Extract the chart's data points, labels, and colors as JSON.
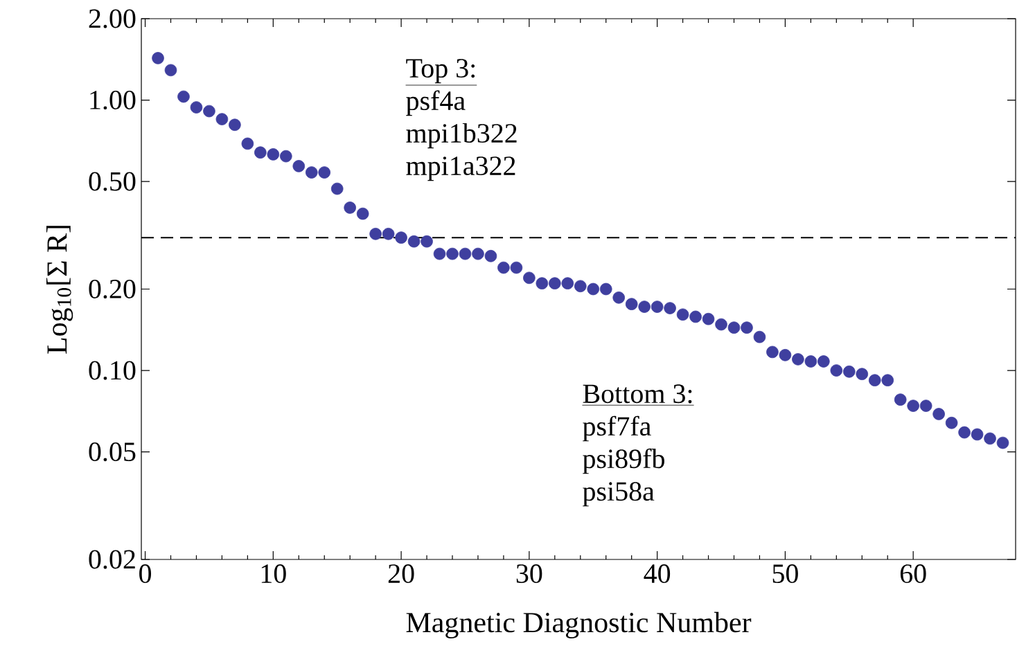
{
  "chart_data": {
    "type": "scatter",
    "xlabel": "Magnetic Diagnostic Number",
    "ylabel": "Log$_{10}$[Σ R]",
    "x": [
      1,
      2,
      3,
      4,
      5,
      6,
      7,
      8,
      9,
      10,
      11,
      12,
      13,
      14,
      15,
      16,
      17,
      18,
      19,
      20,
      21,
      22,
      23,
      24,
      25,
      26,
      27,
      28,
      29,
      30,
      31,
      32,
      33,
      34,
      35,
      36,
      37,
      38,
      39,
      40,
      41,
      42,
      43,
      44,
      45,
      46,
      47,
      48,
      49,
      50,
      51,
      52,
      53,
      54,
      55,
      56,
      57,
      58,
      59,
      60,
      61,
      62,
      63,
      64,
      65,
      66,
      67
    ],
    "values": [
      1.43,
      1.29,
      1.03,
      0.94,
      0.91,
      0.85,
      0.81,
      0.69,
      0.64,
      0.63,
      0.62,
      0.57,
      0.54,
      0.54,
      0.47,
      0.4,
      0.38,
      0.32,
      0.32,
      0.31,
      0.3,
      0.3,
      0.27,
      0.27,
      0.27,
      0.27,
      0.265,
      0.24,
      0.24,
      0.22,
      0.21,
      0.21,
      0.21,
      0.205,
      0.2,
      0.2,
      0.186,
      0.176,
      0.172,
      0.172,
      0.17,
      0.161,
      0.158,
      0.155,
      0.148,
      0.144,
      0.144,
      0.133,
      0.117,
      0.114,
      0.11,
      0.108,
      0.108,
      0.1,
      0.099,
      0.097,
      0.092,
      0.092,
      0.078,
      0.074,
      0.074,
      0.069,
      0.064,
      0.059,
      0.058,
      0.056,
      0.054
    ],
    "color": "#3f3f9f",
    "marker": "circle",
    "log": "y",
    "xlim": [
      -0.3,
      68
    ],
    "xticks": [
      0,
      10,
      20,
      30,
      40,
      50,
      60
    ],
    "ylim": [
      0.02,
      2
    ],
    "yticks": [
      {
        "value": 0.02,
        "label": "0.02"
      },
      {
        "value": 0.05,
        "label": "0.05"
      },
      {
        "value": 0.1,
        "label": "0.10"
      },
      {
        "value": 0.2,
        "label": "0.20"
      },
      {
        "value": 0.5,
        "label": "0.50"
      },
      {
        "value": 1,
        "label": "1.00"
      },
      {
        "value": 2,
        "label": "2.00"
      }
    ],
    "ref_lines": [
      {
        "axis": "y",
        "value": 0.31,
        "color": "#000000",
        "line_style": "dashed"
      }
    ],
    "annotations": [
      "Top 3:",
      "psf4a",
      "mpi1b322",
      "mpi1a322",
      "Bottom 3:",
      "psf7fa",
      "psi89fb",
      "psi58a"
    ]
  }
}
